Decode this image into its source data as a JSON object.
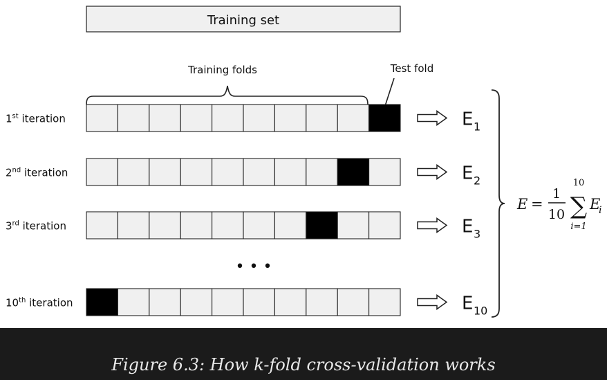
{
  "training_set_label": "Training set",
  "training_folds_label": "Training folds",
  "test_fold_label": "Test fold",
  "num_folds": 10,
  "iterations": [
    {
      "num": "1",
      "sup": "st",
      "suffix": " iteration",
      "test_fold": 10,
      "error_base": "E",
      "error_sub": "1"
    },
    {
      "num": "2",
      "sup": "nd",
      "suffix": " iteration",
      "test_fold": 9,
      "error_base": "E",
      "error_sub": "2"
    },
    {
      "num": "3",
      "sup": "rd",
      "suffix": " iteration",
      "test_fold": 8,
      "error_base": "E",
      "error_sub": "3"
    },
    {
      "num": "10",
      "sup": "th",
      "suffix": " iteration",
      "test_fold": 1,
      "error_base": "E",
      "error_sub": "10"
    }
  ],
  "ellipsis": "• • •",
  "formula": {
    "lhs": "E",
    "equals": "=",
    "numerator": "1",
    "denominator": "10",
    "sum_symbol": "∑",
    "upper": "10",
    "lower": "i=1",
    "term": "E",
    "term_sub": "i"
  },
  "colors": {
    "fold_fill": "#f0f0f0",
    "test_fill": "#000000",
    "stroke": "#222222",
    "caption_bg": "#1b1b1b",
    "caption_text": "#e8e8e8"
  },
  "caption": "Figure 6.3: How k-fold cross-validation works"
}
